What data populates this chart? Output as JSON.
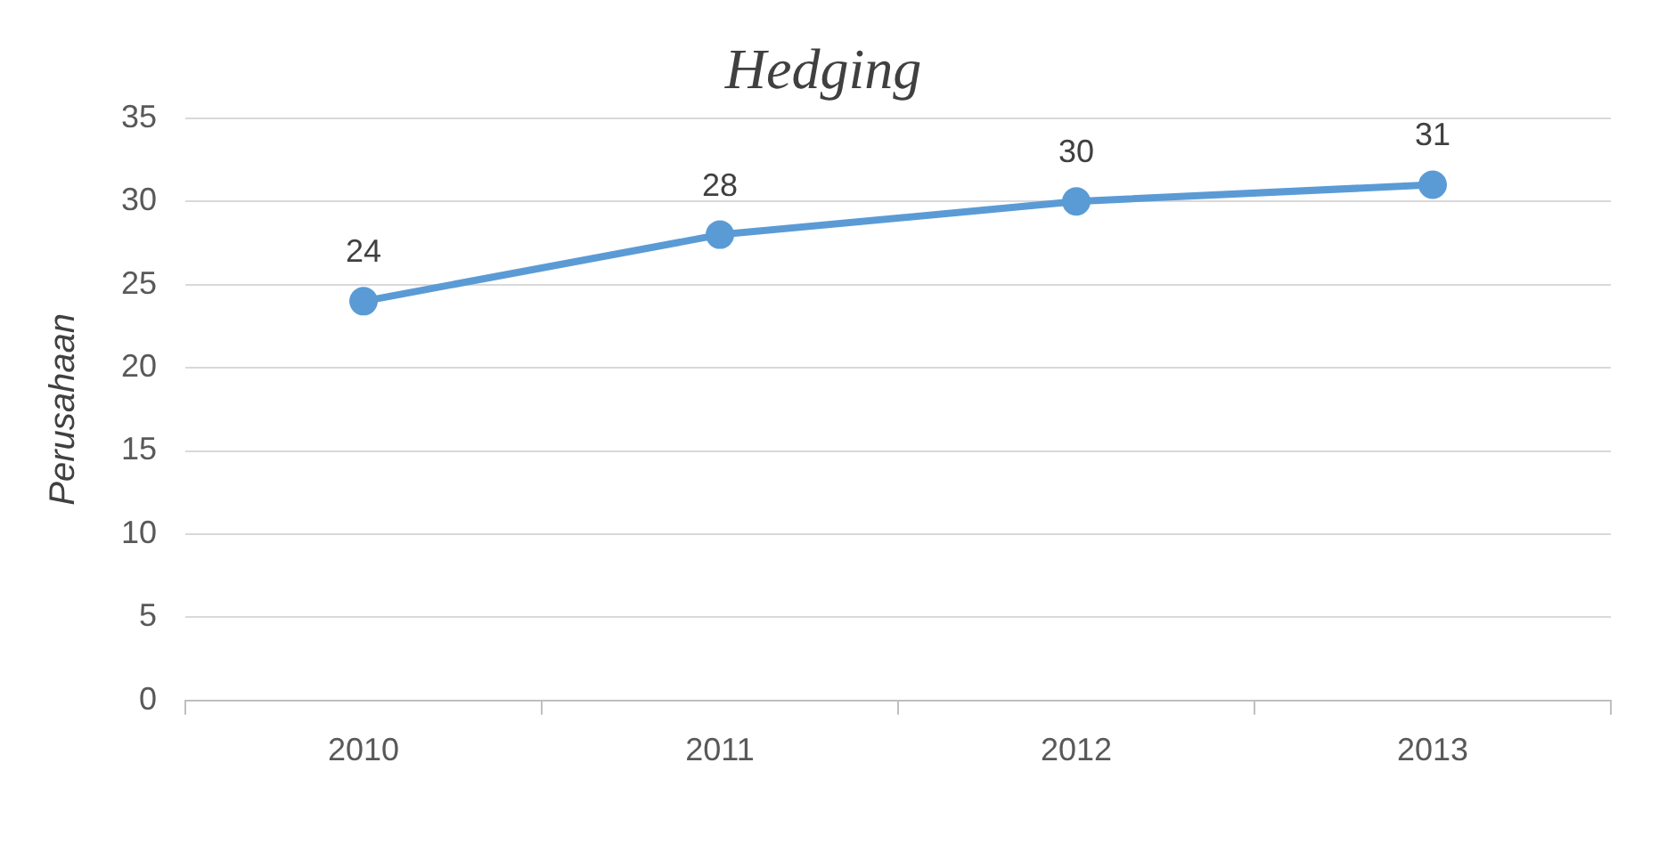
{
  "chart_data": {
    "type": "line",
    "title": "Hedging",
    "ylabel": "Perusahaan",
    "categories": [
      "2010",
      "2011",
      "2012",
      "2013"
    ],
    "series": [
      {
        "color": "#5b9bd5",
        "values": [
          24,
          28,
          30,
          31
        ]
      }
    ],
    "ylim": [
      0,
      35
    ],
    "yticks": [
      0,
      5,
      10,
      15,
      20,
      25,
      30,
      35
    ],
    "grid": "y",
    "legend": false,
    "marker": "circle",
    "line_style": "solid",
    "data_labels": true
  }
}
